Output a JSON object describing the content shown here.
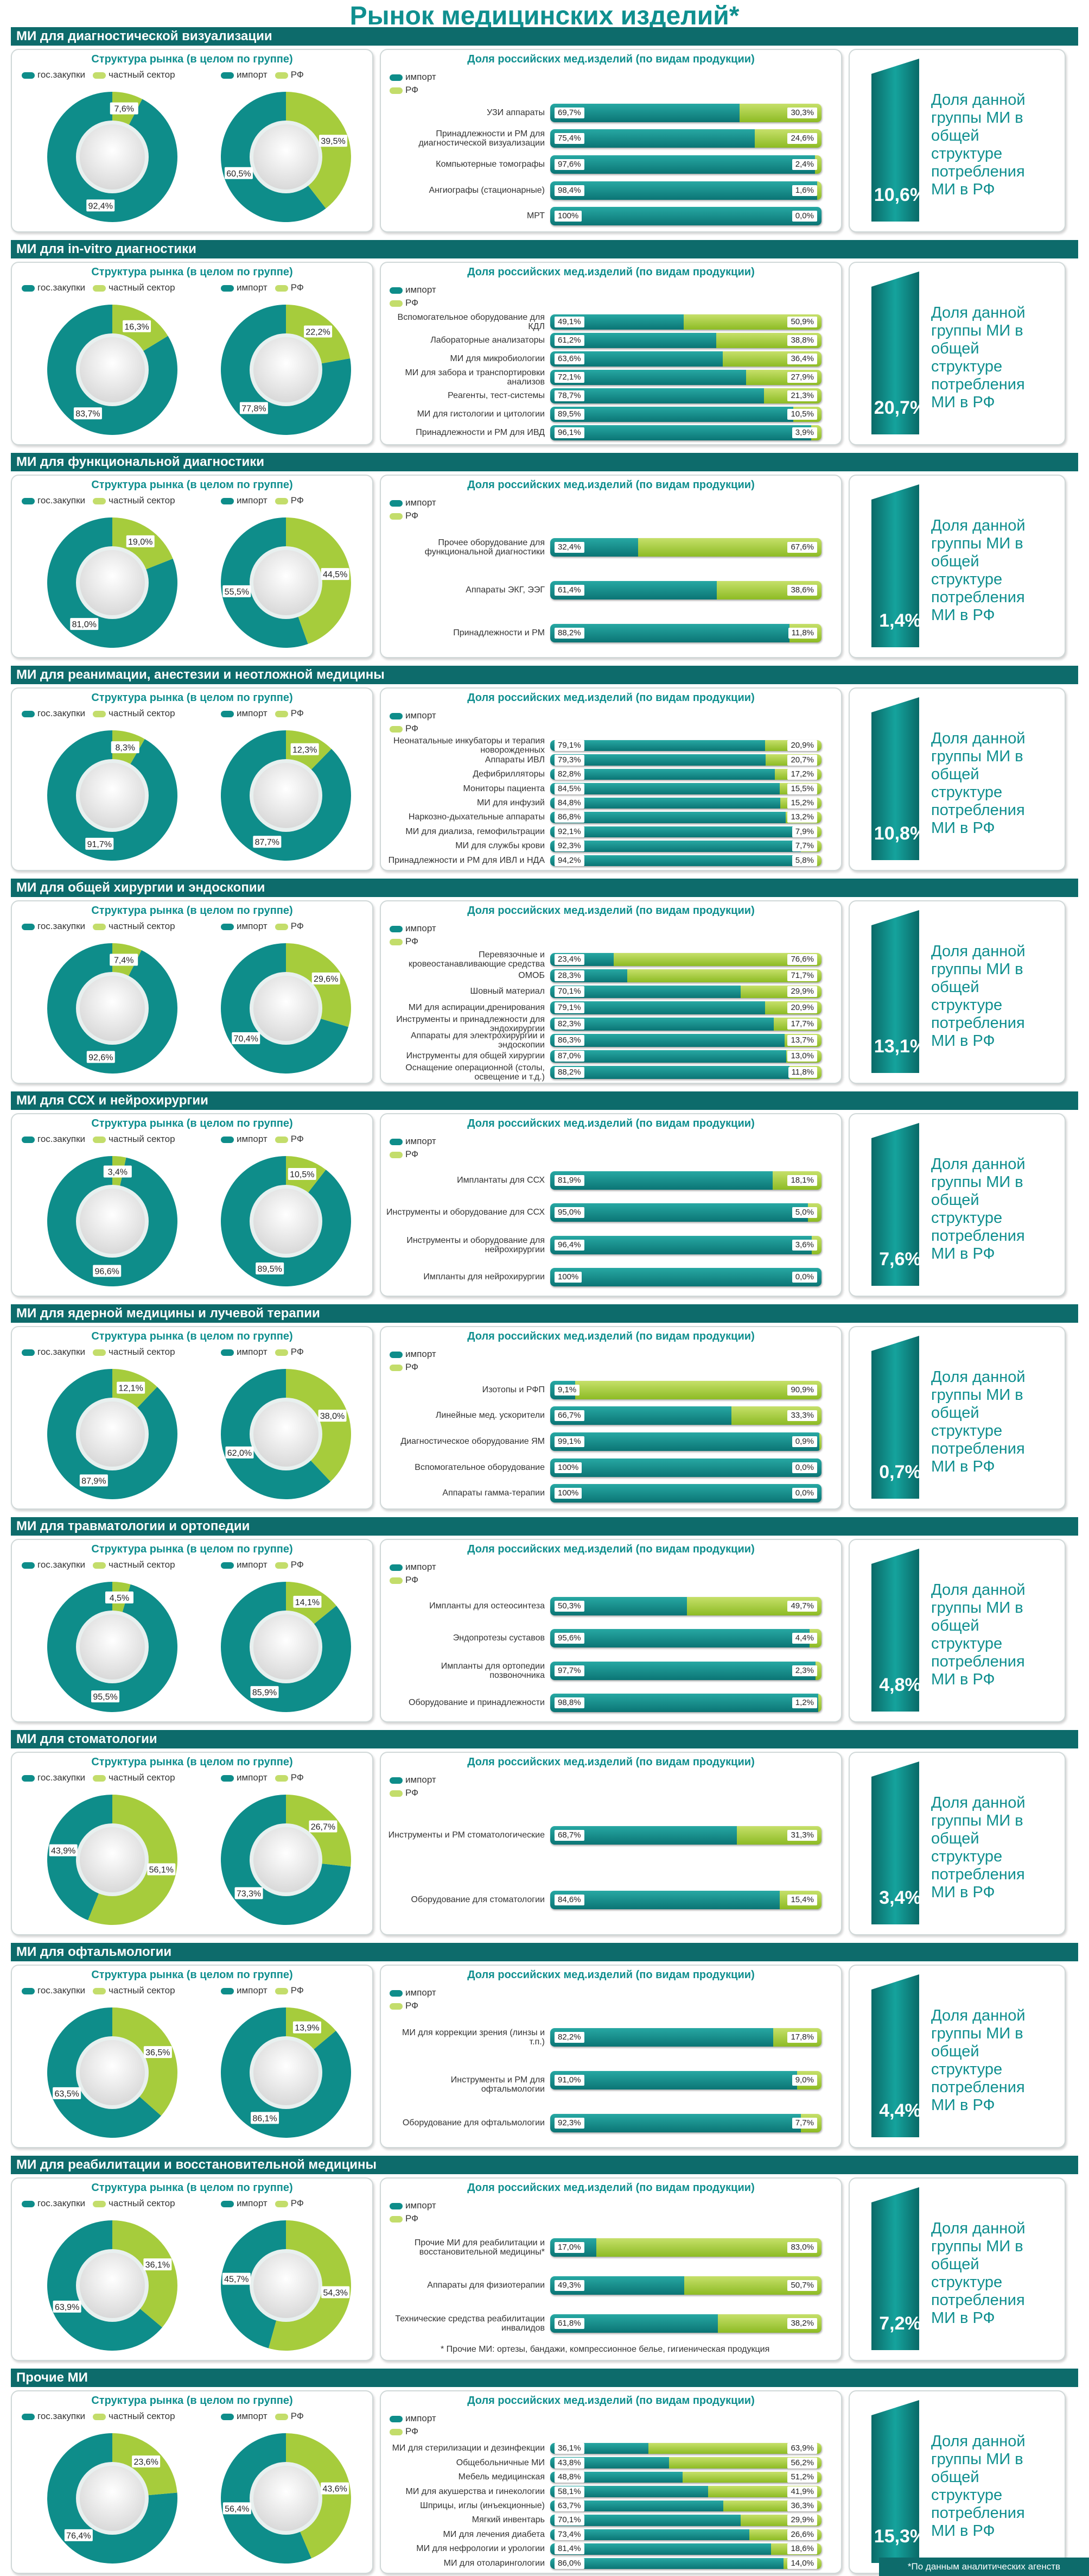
{
  "title": "Рынок медицинских изделий*",
  "labels": {
    "structure_title": "Структура рынка (в целом по группе)",
    "share_title": "Доля российских мед.изделий (по видам продукции)",
    "gos": "гос.закупки",
    "private": "частный сектор",
    "import": "импорт",
    "rf": "РФ",
    "share_text": "Доля данной группы МИ в общей структуре потребления МИ в РФ"
  },
  "colors": {
    "teal": "#0e8d8a",
    "dark_teal": "#0d6b6b",
    "green": "#a6cc3c",
    "header": "#0d6b6b"
  },
  "footnote": "*По данным аналитических агенств",
  "chart_data": [
    {
      "type": "bar",
      "title": "МИ для диагностической визуализации",
      "structure": {
        "gos": 92.4,
        "private": 7.6,
        "import": 60.5,
        "rf": 39.5
      },
      "share": "10,6%",
      "categories": [
        "УЗИ аппараты",
        "Принадлежности и РМ для диагностической визуализации",
        "Компьютерные томографы",
        "Ангиографы (стационарные)",
        "МРТ"
      ],
      "series": [
        {
          "name": "импорт",
          "values": [
            69.7,
            75.4,
            97.6,
            98.4,
            100
          ]
        },
        {
          "name": "РФ",
          "values": [
            30.3,
            24.6,
            2.4,
            1.6,
            0.0
          ]
        }
      ]
    },
    {
      "type": "bar",
      "title": "МИ для in-vitro диагностики",
      "structure": {
        "gos": 83.7,
        "private": 16.3,
        "import": 77.8,
        "rf": 22.2
      },
      "share": "20,7%",
      "categories": [
        "Вспомогательное оборудование для КДЛ",
        "Лабораторные анализаторы",
        "МИ для микробиологии",
        "МИ для забора и транспортировки анализов",
        "Реагенты, тест-системы",
        "МИ для гистологии и цитологии",
        "Принадлежности и РМ для ИВД"
      ],
      "series": [
        {
          "name": "импорт",
          "values": [
            49.1,
            61.2,
            63.6,
            72.1,
            78.7,
            89.5,
            96.1
          ]
        },
        {
          "name": "РФ",
          "values": [
            50.9,
            38.8,
            36.4,
            27.9,
            21.3,
            10.5,
            3.9
          ]
        }
      ]
    },
    {
      "type": "bar",
      "title": "МИ для функциональной диагностики",
      "structure": {
        "gos": 81.0,
        "private": 19.0,
        "import": 55.5,
        "rf": 44.5
      },
      "share": "1,4%",
      "categories": [
        "Прочее оборудование для функциональной диагностики",
        "Аппараты ЭКГ, ЭЭГ",
        "Принадлежности и РМ"
      ],
      "series": [
        {
          "name": "импорт",
          "values": [
            32.4,
            61.4,
            88.2
          ]
        },
        {
          "name": "РФ",
          "values": [
            67.6,
            38.6,
            11.8
          ]
        }
      ]
    },
    {
      "type": "bar",
      "title": "МИ для реанимации, анестезии и неотложной медицины",
      "structure": {
        "gos": 91.7,
        "private": 8.3,
        "import": 87.7,
        "rf": 12.3
      },
      "share": "10,8%",
      "categories": [
        "Неонатальные инкубаторы и терапия новорожденных",
        "Аппараты ИВЛ",
        "Дефибрилляторы",
        "Мониторы пациента",
        "МИ для инфузий",
        "Наркозно-дыхательные аппараты",
        "МИ для диализа, гемофильтрации",
        "МИ для службы крови",
        "Принадлежности и РМ для ИВЛ и НДА"
      ],
      "series": [
        {
          "name": "импорт",
          "values": [
            79.1,
            79.3,
            82.8,
            84.5,
            84.8,
            86.8,
            92.1,
            92.3,
            94.2
          ]
        },
        {
          "name": "РФ",
          "values": [
            20.9,
            20.7,
            17.2,
            15.5,
            15.2,
            13.2,
            7.9,
            7.7,
            5.8
          ]
        }
      ]
    },
    {
      "type": "bar",
      "title": "МИ для общей хирургии и эндоскопии",
      "structure": {
        "gos": 92.6,
        "private": 7.4,
        "import": 70.4,
        "rf": 29.6
      },
      "share": "13,1%",
      "categories": [
        "Перевязочные и кровеостанавливающие средства",
        "ОМОБ",
        "Шовный материал",
        "МИ для аспирации,дренирования",
        "Инструменты и принадлежности для эндохирургии",
        "Аппараты для электрохирургии и эндоскопии",
        "Инструменты для общей хирургии",
        "Оснащение операционной (столы, освещение и т.д.)"
      ],
      "series": [
        {
          "name": "импорт",
          "values": [
            23.4,
            28.3,
            70.1,
            79.1,
            82.3,
            86.3,
            87.0,
            88.2
          ]
        },
        {
          "name": "РФ",
          "values": [
            76.6,
            71.7,
            29.9,
            20.9,
            17.7,
            13.7,
            13.0,
            11.8
          ]
        }
      ]
    },
    {
      "type": "bar",
      "title": "МИ для ССХ и нейрохирургии",
      "structure": {
        "gos": 96.6,
        "private": 3.4,
        "import": 89.5,
        "rf": 10.5
      },
      "share": "7,6%",
      "categories": [
        "Имплантаты для ССХ",
        "Инструменты и оборудование для ССХ",
        "Инструменты и оборудование для нейрохирургии",
        "Импланты для нейрохирургии"
      ],
      "series": [
        {
          "name": "импорт",
          "values": [
            81.9,
            95.0,
            96.4,
            100
          ]
        },
        {
          "name": "РФ",
          "values": [
            18.1,
            5.0,
            3.6,
            0.0
          ]
        }
      ]
    },
    {
      "type": "bar",
      "title": "МИ для ядерной медицины и лучевой терапии",
      "structure": {
        "gos": 87.9,
        "private": 12.1,
        "import": 62.0,
        "rf": 38.0
      },
      "share": "0,7%",
      "categories": [
        "Изотопы и РФП",
        "Линейные мед. ускорители",
        "Диагностическое оборудование ЯМ",
        "Вспомогательное оборудование",
        "Аппараты гамма-терапии"
      ],
      "series": [
        {
          "name": "импорт",
          "values": [
            9.1,
            66.7,
            99.1,
            100,
            100
          ]
        },
        {
          "name": "РФ",
          "values": [
            90.9,
            33.3,
            0.9,
            0.0,
            0.0
          ]
        }
      ]
    },
    {
      "type": "bar",
      "title": "МИ для травматологии и ортопедии",
      "structure": {
        "gos": 95.5,
        "private": 4.5,
        "import": 85.9,
        "rf": 14.1
      },
      "share": "4,8%",
      "categories": [
        "Импланты для остеосинтеза",
        "Эндопротезы суставов",
        "Импланты для ортопедии позвоночника",
        "Оборудование и принадлежности"
      ],
      "series": [
        {
          "name": "импорт",
          "values": [
            50.3,
            95.6,
            97.7,
            98.8
          ]
        },
        {
          "name": "РФ",
          "values": [
            49.7,
            4.4,
            2.3,
            1.2
          ]
        }
      ]
    },
    {
      "type": "bar",
      "title": "МИ для стоматологии",
      "structure": {
        "gos": 43.9,
        "private": 56.1,
        "import": 73.3,
        "rf": 26.7
      },
      "share": "3,4%",
      "categories": [
        "Инструменты и РМ стоматологические",
        "Оборудование для стоматологии"
      ],
      "series": [
        {
          "name": "импорт",
          "values": [
            68.7,
            84.6
          ]
        },
        {
          "name": "РФ",
          "values": [
            31.3,
            15.4
          ]
        }
      ]
    },
    {
      "type": "bar",
      "title": "МИ для офтальмологии",
      "structure": {
        "gos": 63.5,
        "private": 36.5,
        "import": 86.1,
        "rf": 13.9
      },
      "share": "4,4%",
      "categories": [
        "МИ для коррекции зрения (линзы и т.п.)",
        "Инструменты и РМ для офтальмологии",
        "Оборудование для офтальмологии"
      ],
      "series": [
        {
          "name": "импорт",
          "values": [
            82.2,
            91.0,
            92.3
          ]
        },
        {
          "name": "РФ",
          "values": [
            17.8,
            9.0,
            7.7
          ]
        }
      ]
    },
    {
      "type": "bar",
      "title": "МИ для реабилитации и восстановительной медицины",
      "structure": {
        "gos": 63.9,
        "private": 36.1,
        "import": 45.7,
        "rf": 54.3
      },
      "share": "7,2%",
      "note": "*  Прочие МИ: ортезы, бандажи, компрессионное белье, гигиеническая продукция",
      "categories": [
        "Прочие МИ для реабилитации и восстановительной медицины*",
        "Аппараты для физиотерапии",
        "Технические средства реабилитации инвалидов"
      ],
      "series": [
        {
          "name": "импорт",
          "values": [
            17.0,
            49.3,
            61.8
          ]
        },
        {
          "name": "РФ",
          "values": [
            83.0,
            50.7,
            38.2
          ]
        }
      ]
    },
    {
      "type": "bar",
      "title": "Прочие МИ",
      "structure": {
        "gos": 76.4,
        "private": 23.6,
        "import": 56.4,
        "rf": 43.6
      },
      "share": "15,3%",
      "categories": [
        "МИ для стерилизации и дезинфекции",
        "Общебольничные МИ",
        "Мебель медицинская",
        "МИ для акушерства и гинекологии",
        "Шприцы, иглы (инъекционные)",
        "Мягкий инвентарь",
        "МИ для лечения диабета",
        "МИ для нефрологии и урологии",
        "МИ для отоларингологии"
      ],
      "series": [
        {
          "name": "импорт",
          "values": [
            36.1,
            43.8,
            48.8,
            58.1,
            63.7,
            70.1,
            73.4,
            81.4,
            86.0
          ]
        },
        {
          "name": "РФ",
          "values": [
            63.9,
            56.2,
            51.2,
            41.9,
            36.3,
            29.9,
            26.6,
            18.6,
            14.0
          ]
        }
      ]
    }
  ]
}
